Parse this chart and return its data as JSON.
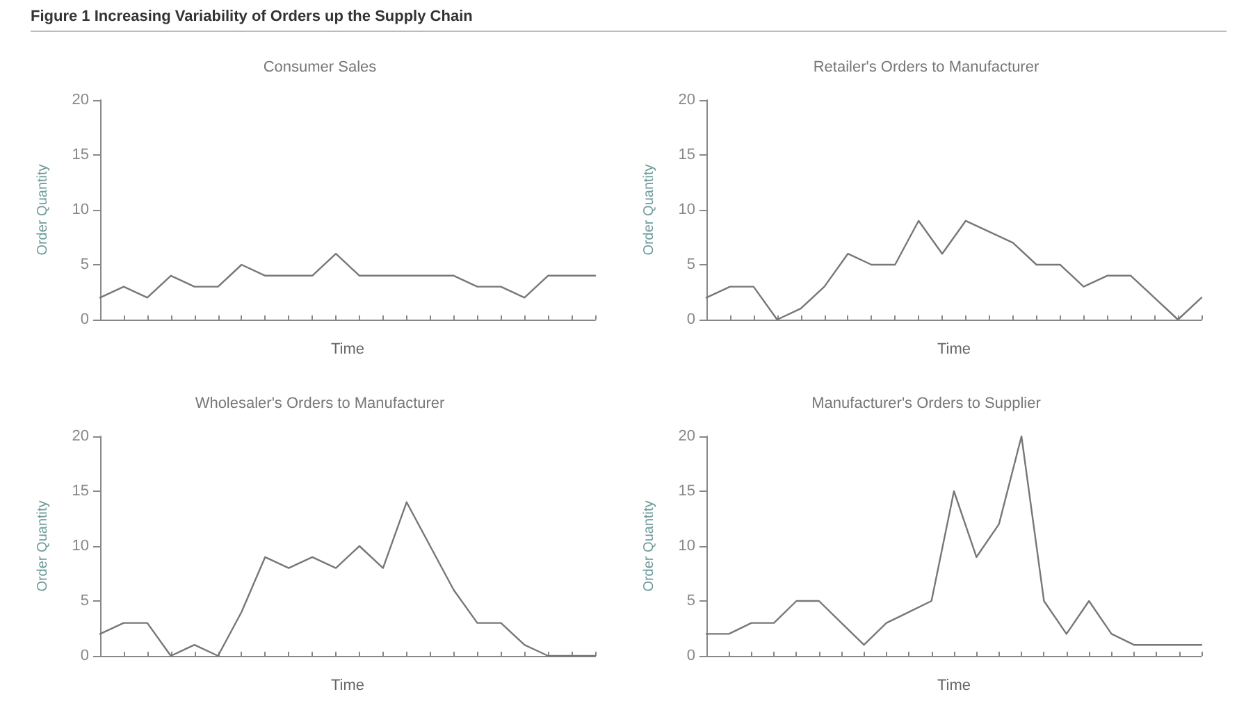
{
  "chart_data": [
    {
      "type": "line",
      "title": "Consumer Sales",
      "xlabel": "Time",
      "ylabel": "Order Quantity",
      "annotations": [
        "Figure 1   Increasing Variability of Orders up the Supply Chain"
      ],
      "categories": [
        null,
        null,
        null,
        null,
        null,
        null,
        null,
        null,
        null,
        null,
        null,
        null,
        null,
        null,
        null,
        null,
        null,
        null,
        null,
        null,
        null,
        null
      ],
      "series": [
        {
          "color": "#777777",
          "values": [
            2,
            3,
            2,
            4,
            3,
            3,
            5,
            4,
            4,
            4,
            6,
            4,
            4,
            4,
            4,
            4,
            3,
            3,
            2,
            4,
            4,
            4
          ]
        }
      ],
      "ylim": [
        0,
        20
      ],
      "yticks": [
        0,
        5,
        10,
        15,
        20
      ],
      "grid": false,
      "tick_labels": "y",
      "marker": "none",
      "line_style": "solid"
    },
    {
      "type": "line",
      "title": "Retailer's Orders to Manufacturer",
      "xlabel": "Time",
      "ylabel": "Order Quantity",
      "categories": [
        null,
        null,
        null,
        null,
        null,
        null,
        null,
        null,
        null,
        null,
        null,
        null,
        null,
        null,
        null,
        null,
        null,
        null,
        null,
        null,
        null,
        null
      ],
      "series": [
        {
          "color": "#777777",
          "values": [
            2,
            3,
            3,
            0,
            1,
            3,
            6,
            5,
            5,
            9,
            6,
            9,
            8,
            7,
            5,
            5,
            3,
            4,
            4,
            2,
            0,
            2
          ]
        }
      ],
      "ylim": [
        0,
        20
      ],
      "yticks": [
        0,
        5,
        10,
        15,
        20
      ],
      "grid": false,
      "tick_labels": "y",
      "marker": "none",
      "line_style": "solid"
    },
    {
      "type": "line",
      "title": "Wholesaler's Orders to Manufacturer",
      "xlabel": "Time",
      "ylabel": "Order Quantity",
      "categories": [
        null,
        null,
        null,
        null,
        null,
        null,
        null,
        null,
        null,
        null,
        null,
        null,
        null,
        null,
        null,
        null,
        null,
        null,
        null,
        null,
        null,
        null
      ],
      "series": [
        {
          "color": "#777777",
          "values": [
            2,
            3,
            3,
            0,
            1,
            0,
            4,
            9,
            8,
            9,
            8,
            10,
            8,
            14,
            10,
            6,
            3,
            3,
            1,
            0,
            0,
            0
          ]
        }
      ],
      "ylim": [
        0,
        20
      ],
      "yticks": [
        0,
        5,
        10,
        15,
        20
      ],
      "grid": false,
      "tick_labels": "y",
      "marker": "none",
      "line_style": "solid"
    },
    {
      "type": "line",
      "title": "Manufacturer's Orders to Supplier",
      "xlabel": "Time",
      "ylabel": "Order Quantity",
      "categories": [
        null,
        null,
        null,
        null,
        null,
        null,
        null,
        null,
        null,
        null,
        null,
        null,
        null,
        null,
        null,
        null,
        null,
        null,
        null,
        null,
        null,
        null,
        null
      ],
      "series": [
        {
          "color": "#777777",
          "values": [
            2,
            2,
            3,
            3,
            5,
            5,
            3,
            1,
            3,
            4,
            5,
            15,
            9,
            12,
            20,
            5,
            2,
            5,
            2,
            1,
            1,
            1,
            1
          ]
        }
      ],
      "ylim": [
        0,
        20
      ],
      "yticks": [
        0,
        5,
        10,
        15,
        20
      ],
      "grid": false,
      "tick_labels": "y",
      "marker": "none",
      "line_style": "solid"
    }
  ]
}
